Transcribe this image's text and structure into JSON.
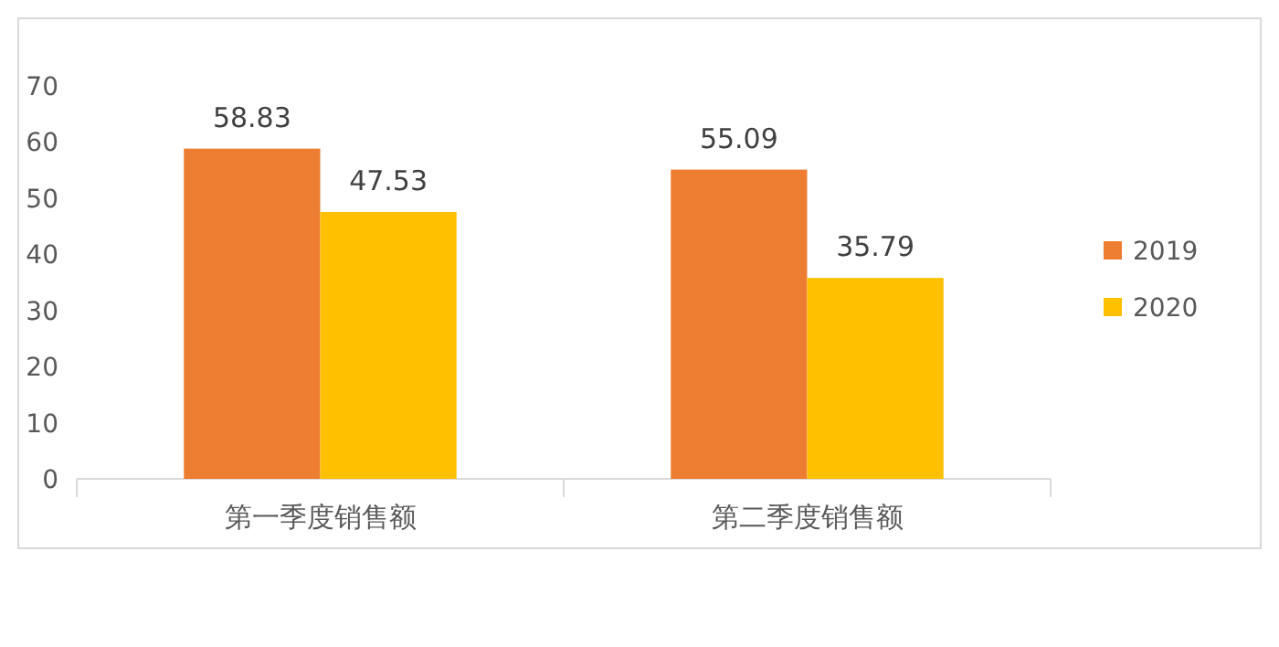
{
  "chart_data": {
    "type": "bar",
    "categories": [
      "第一季度销售额",
      "第二季度销售额"
    ],
    "series": [
      {
        "name": "2019",
        "color": "#ed7d31",
        "values": [
          58.83,
          55.09
        ]
      },
      {
        "name": "2020",
        "color": "#ffc000",
        "values": [
          47.53,
          35.79
        ]
      }
    ],
    "ylim": [
      0,
      70
    ],
    "yticks": [
      0,
      10,
      20,
      30,
      40,
      50,
      60,
      70
    ],
    "data_labels": true,
    "legend": "right",
    "grid": false
  }
}
